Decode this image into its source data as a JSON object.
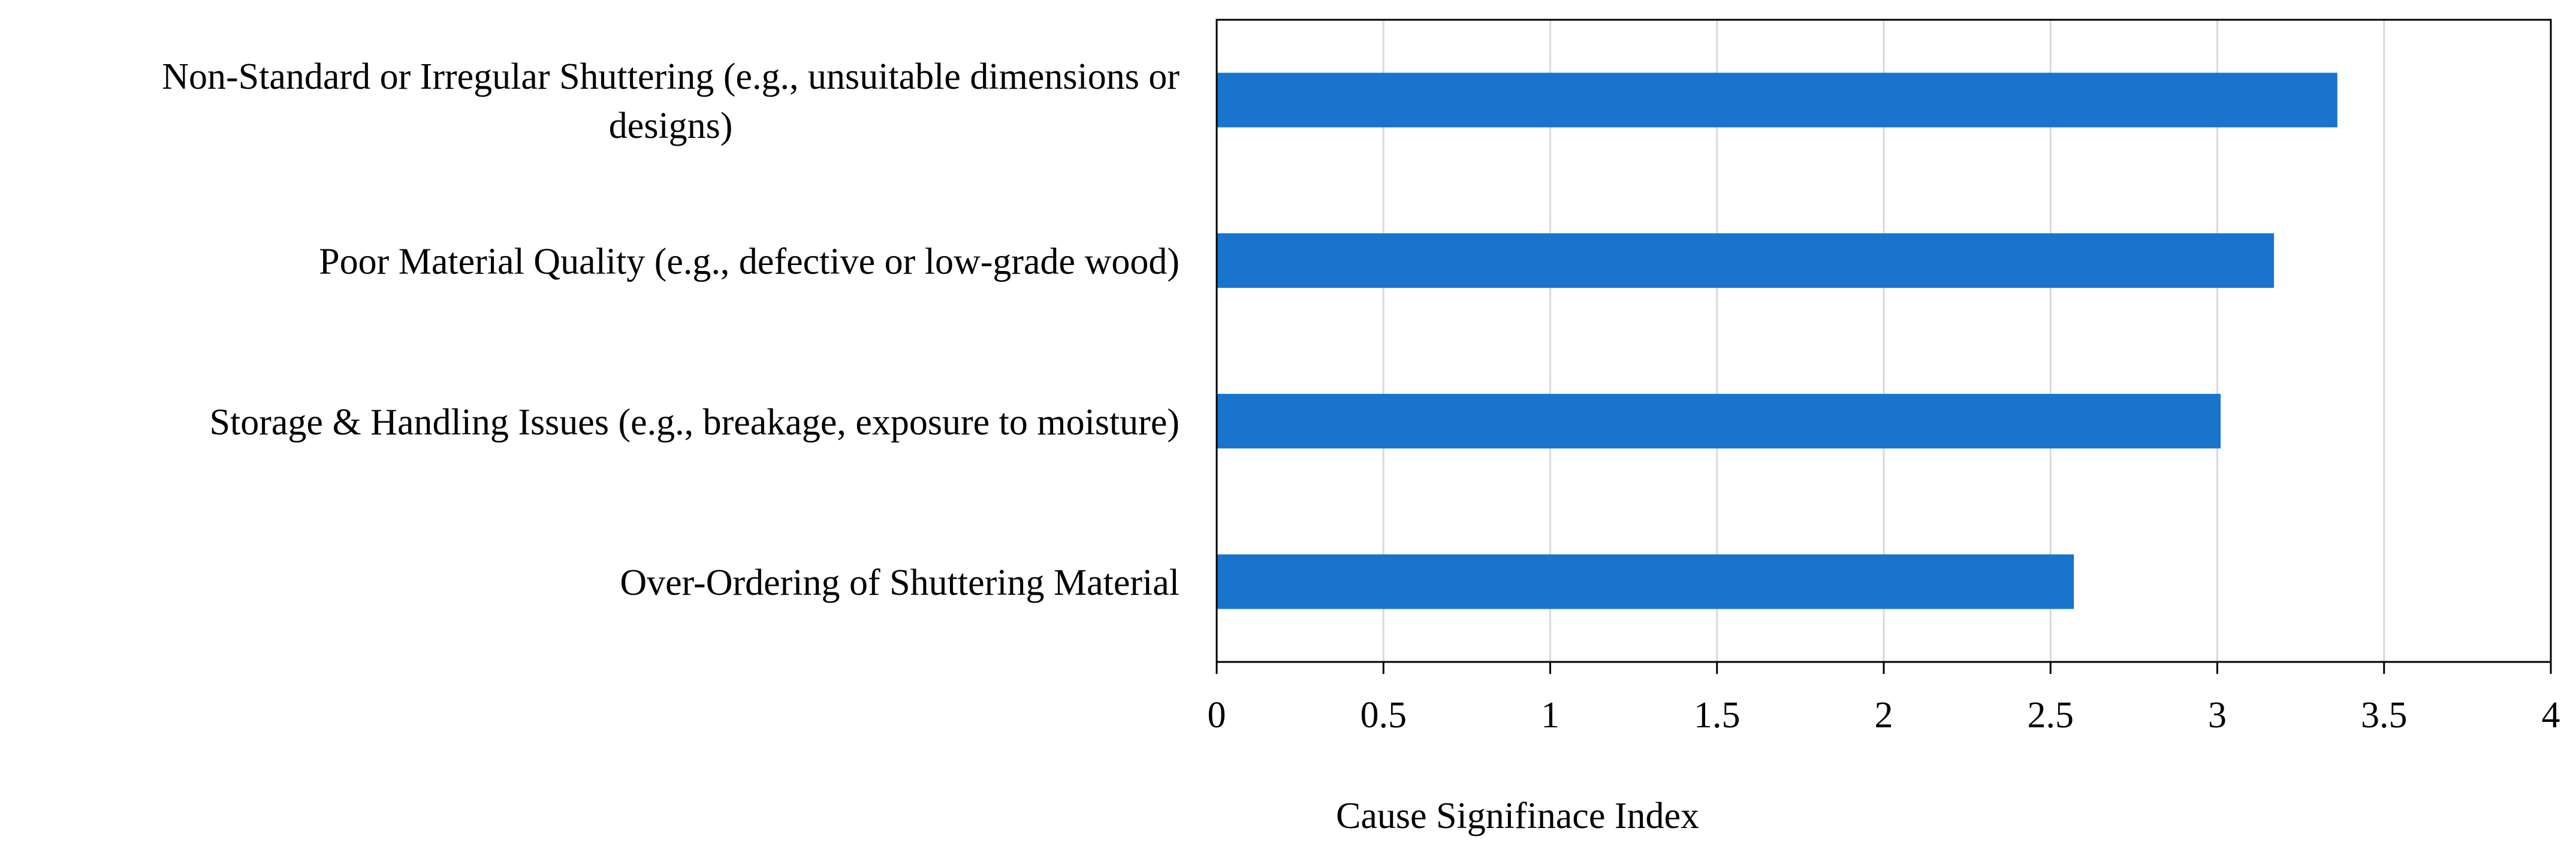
{
  "chart_data": {
    "type": "bar",
    "orientation": "horizontal",
    "categories": [
      "Non-Standard or Irregular Shuttering (e.g., unsuitable dimensions or designs)",
      "Poor Material Quality (e.g., defective or low-grade wood)",
      "Storage & Handling Issues (e.g., breakage, exposure to moisture)",
      "Over-Ordering of Shuttering Material"
    ],
    "category_lines": [
      [
        "Non-Standard or Irregular Shuttering (e.g., unsuitable dimensions or",
        "designs)"
      ],
      [
        "Poor Material Quality (e.g., defective or low-grade wood)"
      ],
      [
        "Storage & Handling Issues (e.g., breakage, exposure to moisture)"
      ],
      [
        "Over-Ordering of Shuttering Material"
      ]
    ],
    "values": [
      3.36,
      3.17,
      3.01,
      2.57
    ],
    "xlabel": "Cause Signifinace Index",
    "ylabel": "",
    "title": "",
    "xlim": [
      0,
      4
    ],
    "x_ticks": [
      "0",
      "0.5",
      "1",
      "1.5",
      "2",
      "2.5",
      "3",
      "3.5",
      "4"
    ],
    "grid": "vertical",
    "legend": "none",
    "bar_color": "#1874CD",
    "grid_color": "#D9D9D9",
    "axis_color": "#000000"
  }
}
